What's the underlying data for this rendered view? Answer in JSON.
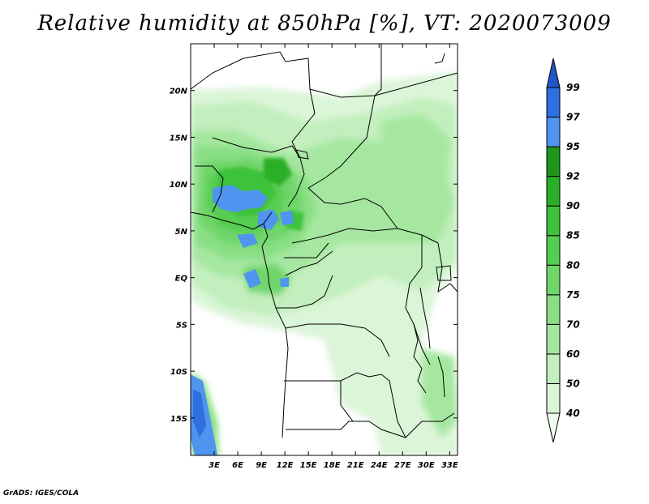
{
  "title": "Relative humidity at 850hPa [%], VT: 2020073009",
  "footer": "GrADS: IGES/COLA",
  "map": {
    "lon_range": [
      0,
      34
    ],
    "lat_range": [
      -19,
      25
    ],
    "lon_ticks": [
      "3E",
      "6E",
      "9E",
      "12E",
      "15E",
      "18E",
      "21E",
      "24E",
      "27E",
      "30E",
      "33E"
    ],
    "lat_ticks": [
      "20N",
      "15N",
      "10N",
      "5N",
      "EQ",
      "5S",
      "10S",
      "15S"
    ]
  },
  "colorbar": {
    "levels": [
      "40",
      "50",
      "60",
      "70",
      "75",
      "80",
      "85",
      "90",
      "92",
      "95",
      "97",
      "99"
    ],
    "colors": [
      "#f0fbef",
      "#dbf5d8",
      "#c2efbd",
      "#a5e7a0",
      "#8adf84",
      "#6fd66a",
      "#54cd50",
      "#3ec23a",
      "#2aaf28",
      "#1e961e",
      "#4f95ef",
      "#2f6fe0",
      "#1f57c8"
    ]
  }
}
